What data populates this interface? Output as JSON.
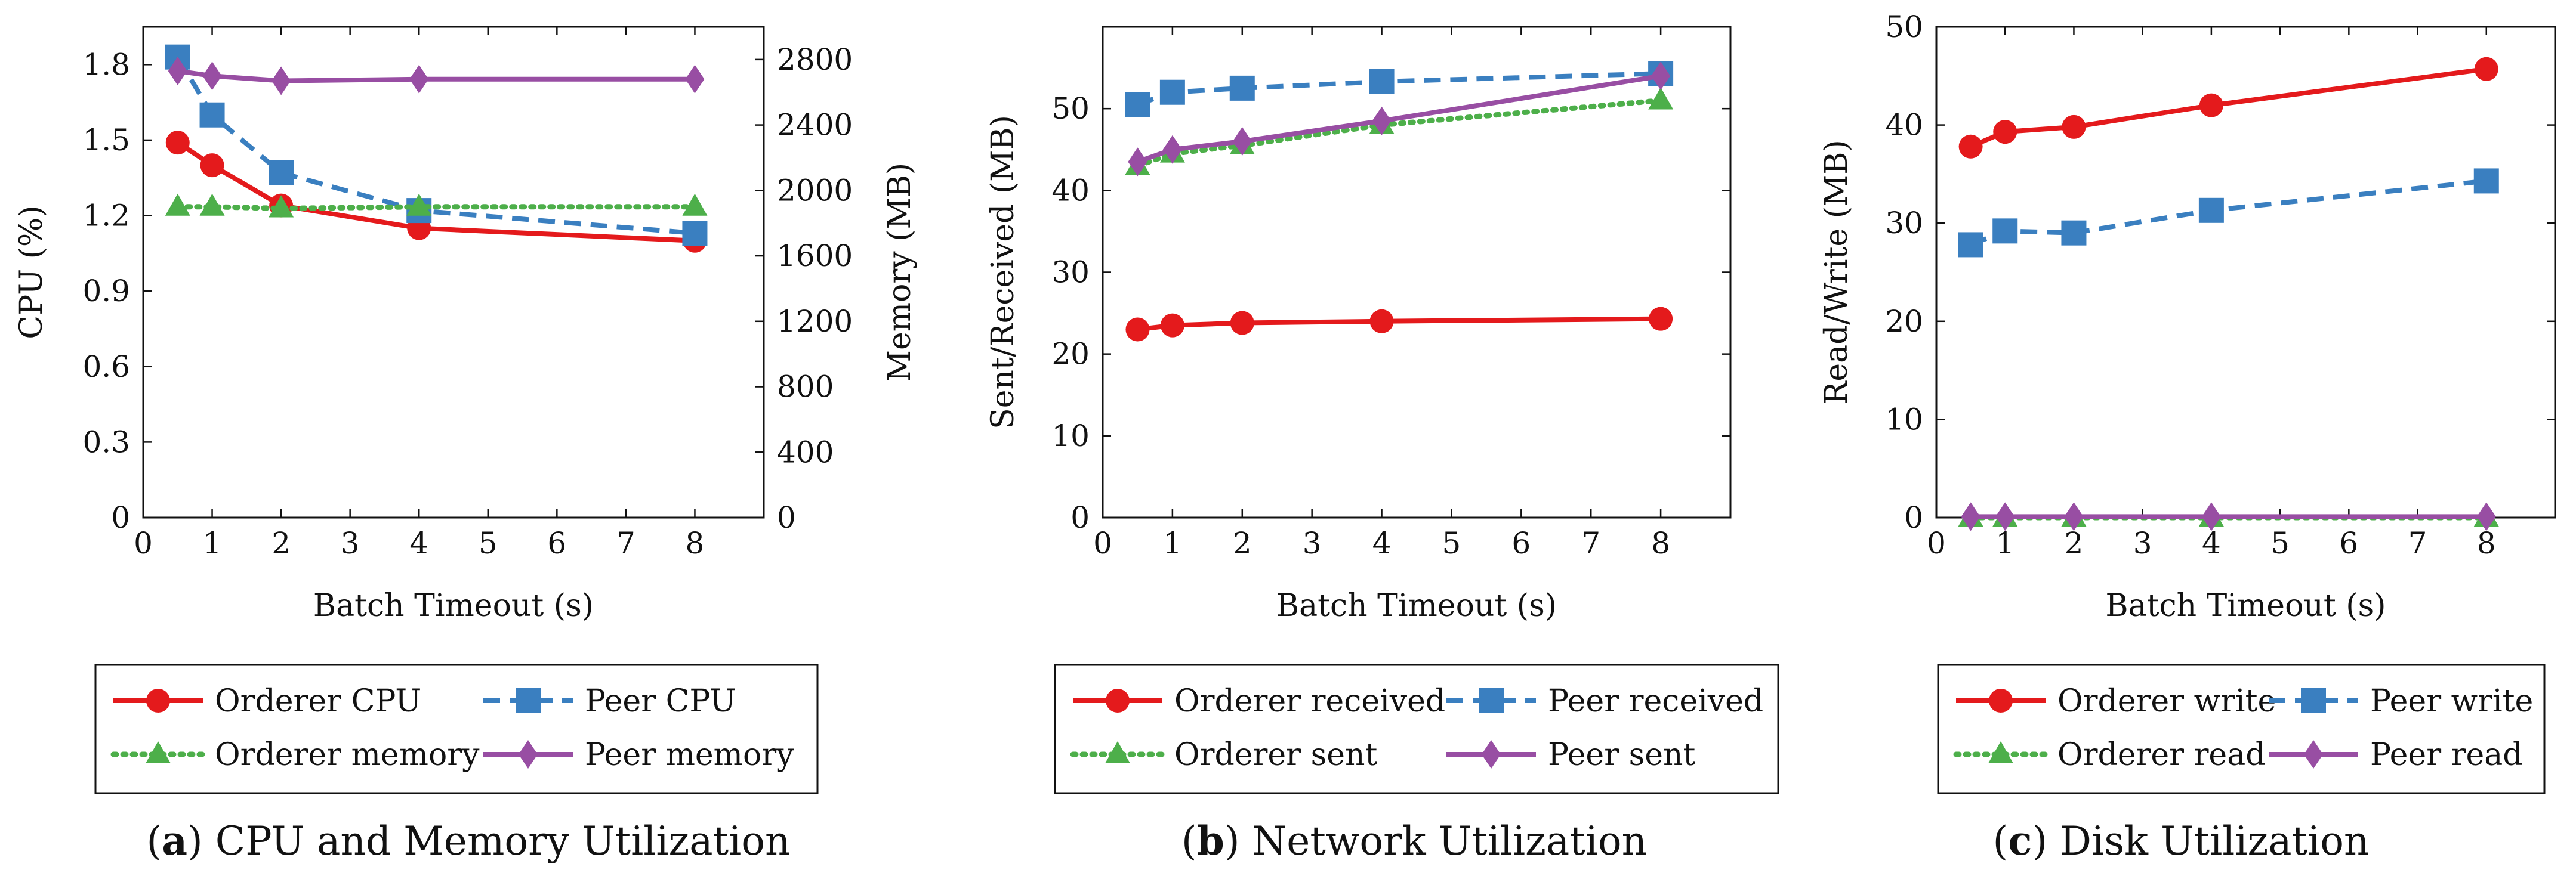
{
  "colors": {
    "red": "#e41a1c",
    "blue": "#3a7fc0",
    "green": "#4daf4a",
    "purple": "#984ea3"
  },
  "chart_data": [
    {
      "type": "line",
      "caption_letter": "a",
      "caption_text": "CPU and Memory Utilization",
      "xlabel": "Batch Timeout (s)",
      "ylabel": "CPU (%)",
      "y2label": "Memory (MB)",
      "xlim": [
        0,
        9
      ],
      "ylim": [
        0,
        1.95
      ],
      "y2lim": [
        0,
        3000
      ],
      "xticks": [
        "0",
        "1",
        "2",
        "3",
        "4",
        "5",
        "6",
        "7",
        "8"
      ],
      "yticks": [
        "0",
        "0.3",
        "0.6",
        "0.9",
        "1.2",
        "1.5",
        "1.8"
      ],
      "y2ticks": [
        "0",
        "400",
        "800",
        "1200",
        "1600",
        "2000",
        "2400",
        "2800"
      ],
      "x": [
        0.5,
        1,
        2,
        4,
        8
      ],
      "series": [
        {
          "name": "Orderer CPU",
          "axis": "left",
          "color": "red",
          "marker": "circle",
          "dash": "solid",
          "values": [
            1.49,
            1.4,
            1.24,
            1.15,
            1.1
          ]
        },
        {
          "name": "Peer CPU",
          "axis": "left",
          "color": "blue",
          "marker": "square",
          "dash": "dashed",
          "values": [
            1.83,
            1.6,
            1.37,
            1.22,
            1.13
          ]
        },
        {
          "name": "Orderer memory",
          "axis": "right",
          "color": "green",
          "marker": "triangle",
          "dash": "dotted",
          "values": [
            1900,
            1900,
            1890,
            1900,
            1900
          ]
        },
        {
          "name": "Peer memory",
          "axis": "right",
          "color": "purple",
          "marker": "diamond",
          "dash": "solid",
          "values": [
            2730,
            2700,
            2670,
            2680,
            2680
          ]
        }
      ],
      "legend": [
        "Orderer CPU",
        "Peer CPU",
        "Orderer memory",
        "Peer memory"
      ]
    },
    {
      "type": "line",
      "caption_letter": "b",
      "caption_text": "Network Utilization",
      "xlabel": "Batch Timeout (s)",
      "ylabel": "Sent/Received (MB)",
      "xlim": [
        0,
        9
      ],
      "ylim": [
        0,
        60
      ],
      "xticks": [
        "0",
        "1",
        "2",
        "3",
        "4",
        "5",
        "6",
        "7",
        "8"
      ],
      "yticks": [
        "0",
        "10",
        "20",
        "30",
        "40",
        "50"
      ],
      "x": [
        0.5,
        1,
        2,
        4,
        8
      ],
      "series": [
        {
          "name": "Orderer received",
          "color": "red",
          "marker": "circle",
          "dash": "solid",
          "values": [
            23,
            23.5,
            23.8,
            24,
            24.3
          ]
        },
        {
          "name": "Peer received",
          "color": "blue",
          "marker": "square",
          "dash": "dashed",
          "values": [
            50.5,
            52,
            52.5,
            53.3,
            54.3
          ]
        },
        {
          "name": "Orderer sent",
          "color": "green",
          "marker": "triangle",
          "dash": "dotted",
          "values": [
            43,
            44.5,
            45.5,
            48,
            51
          ]
        },
        {
          "name": "Peer sent",
          "color": "purple",
          "marker": "diamond",
          "dash": "solid",
          "values": [
            43.5,
            45,
            46,
            48.5,
            54
          ]
        }
      ],
      "legend": [
        "Orderer received",
        "Peer received",
        "Orderer sent",
        "Peer sent"
      ]
    },
    {
      "type": "line",
      "caption_letter": "c",
      "caption_text": "Disk Utilization",
      "xlabel": "Batch Timeout (s)",
      "ylabel": "Read/Write (MB)",
      "xlim": [
        0,
        9
      ],
      "ylim": [
        0,
        50
      ],
      "xticks": [
        "0",
        "1",
        "2",
        "3",
        "4",
        "5",
        "6",
        "7",
        "8"
      ],
      "yticks": [
        "0",
        "10",
        "20",
        "30",
        "40",
        "50"
      ],
      "x": [
        0.5,
        1,
        2,
        4,
        8
      ],
      "series": [
        {
          "name": "Orderer write",
          "color": "red",
          "marker": "circle",
          "dash": "solid",
          "values": [
            37.8,
            39.3,
            39.8,
            42,
            45.7
          ]
        },
        {
          "name": "Peer write",
          "color": "blue",
          "marker": "square",
          "dash": "dashed",
          "values": [
            27.8,
            29.2,
            29,
            31.3,
            34.3
          ]
        },
        {
          "name": "Orderer read",
          "color": "green",
          "marker": "triangle",
          "dash": "dotted",
          "values": [
            0,
            0,
            0,
            0,
            0
          ]
        },
        {
          "name": "Peer read",
          "color": "purple",
          "marker": "diamond",
          "dash": "solid",
          "values": [
            0.1,
            0.1,
            0.1,
            0.1,
            0.1
          ]
        }
      ],
      "legend": [
        "Orderer write",
        "Peer write",
        "Orderer read",
        "Peer read"
      ]
    }
  ]
}
